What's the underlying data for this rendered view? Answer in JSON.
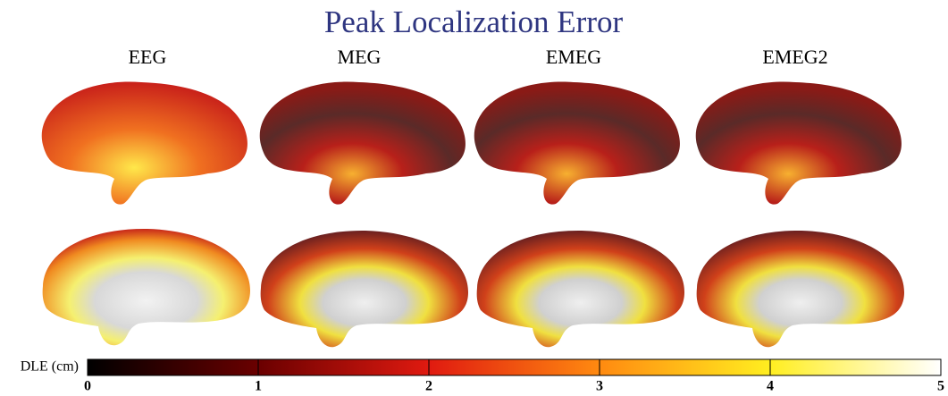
{
  "title": "Peak Localization Error",
  "columns": [
    "EEG",
    "MEG",
    "EMEG",
    "EMEG2"
  ],
  "colorbar": {
    "label": "DLE (cm)",
    "lim": [
      0,
      5
    ],
    "ticks": [
      0,
      1,
      2,
      3,
      4,
      5
    ]
  }
}
